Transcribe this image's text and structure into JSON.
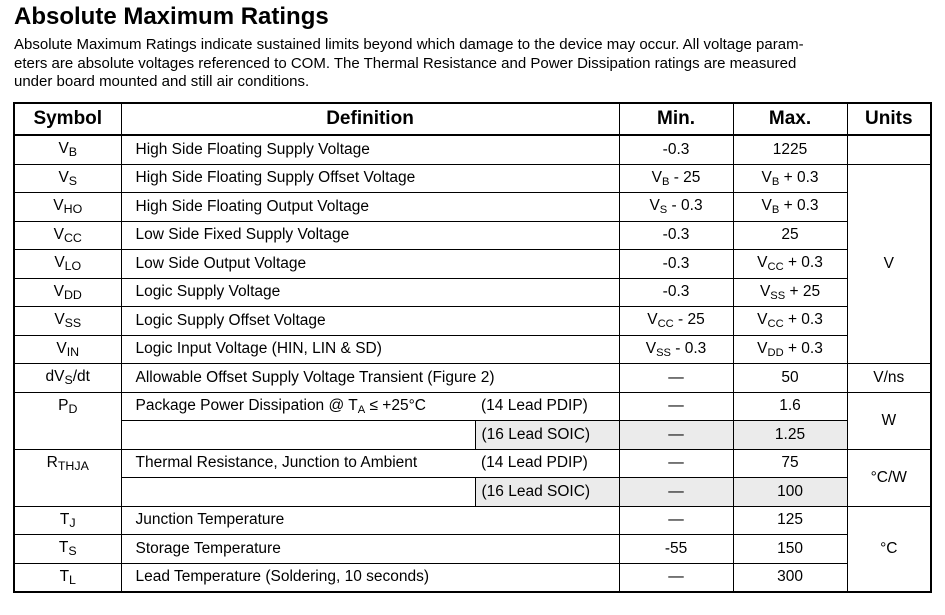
{
  "heading": "Absolute Maximum Ratings",
  "intro_lines": [
    "Absolute Maximum Ratings indicate sustained limits beyond which damage to the device may occur. All voltage param-",
    "eters are absolute voltages referenced to COM. The Thermal Resistance and Power Dissipation ratings are measured",
    "under board mounted and still air conditions."
  ],
  "columns": {
    "symbol": "Symbol",
    "definition": "Definition",
    "min": "Min.",
    "max": "Max.",
    "units": "Units"
  },
  "rows": {
    "vb": {
      "sym": "V",
      "sym_sub": "B",
      "definition": "High Side Floating Supply Voltage",
      "min": "-0.3",
      "max": "1225"
    },
    "vs": {
      "sym": "V",
      "sym_sub": "S",
      "definition": "High Side Floating Supply Offset Voltage",
      "min": "V",
      "min_sub": "B",
      "min_tail": " - 25",
      "max": "V",
      "max_sub": "B",
      "max_tail": " + 0.3"
    },
    "vho": {
      "sym": "V",
      "sym_sub": "HO",
      "definition": "High Side Floating Output Voltage",
      "min": "V",
      "min_sub": "S",
      "min_tail": " - 0.3",
      "max": "V",
      "max_sub": "B",
      "max_tail": " + 0.3"
    },
    "vcc": {
      "sym": "V",
      "sym_sub": "CC",
      "definition": "Low Side Fixed Supply Voltage",
      "min": "-0.3",
      "max": "25"
    },
    "vlo": {
      "sym": "V",
      "sym_sub": "LO",
      "definition": "Low Side Output Voltage",
      "min": "-0.3",
      "max": "V",
      "max_sub": "CC",
      "max_tail": " + 0.3"
    },
    "vdd": {
      "sym": "V",
      "sym_sub": "DD",
      "definition": "Logic Supply Voltage",
      "min": "-0.3",
      "max": "V",
      "max_sub": "SS",
      "max_tail": " + 25"
    },
    "vss": {
      "sym": "V",
      "sym_sub": "SS",
      "definition": "Logic Supply Offset Voltage",
      "min": "V",
      "min_sub": "CC",
      "min_tail": " - 25",
      "max": "V",
      "max_sub": "CC",
      "max_tail": " + 0.3"
    },
    "vin": {
      "sym": "V",
      "sym_sub": "IN",
      "definition": "Logic Input Voltage (HIN, LIN & SD)",
      "min": "V",
      "min_sub": "SS",
      "min_tail": " - 0.3",
      "max": "V",
      "max_sub": "DD",
      "max_tail": " + 0.3"
    },
    "dvsdt": {
      "sym": "dV",
      "sym_sub": "S",
      "sym_tail": "/dt",
      "definition": "Allowable Offset Supply Voltage Transient (Figure 2)",
      "min": "—",
      "max": "50",
      "units": "V/ns"
    },
    "pd": {
      "sym": "P",
      "sym_sub": "D",
      "definition": "Package Power Dissipation @ T",
      "def_sub": "A",
      "def_tail": " ≤ +25°C",
      "pkg1": "(14 Lead PDIP)",
      "min1": "—",
      "max1": "1.6",
      "pkg2": "(16 Lead SOIC)",
      "min2": "—",
      "max2": "1.25",
      "units": "W"
    },
    "rthja": {
      "sym": "R",
      "sym_sub": "THJA",
      "definition": "Thermal Resistance, Junction to Ambient",
      "pkg1": "(14 Lead PDIP)",
      "min1": "—",
      "max1": "75",
      "pkg2": "(16 Lead SOIC)",
      "min2": "—",
      "max2": "100",
      "units": "°C/W"
    },
    "tj": {
      "sym": "T",
      "sym_sub": "J",
      "definition": "Junction Temperature",
      "min": "—",
      "max": "125"
    },
    "ts": {
      "sym": "T",
      "sym_sub": "S",
      "definition": "Storage Temperature",
      "min": "-55",
      "max": "150"
    },
    "tl": {
      "sym": "T",
      "sym_sub": "L",
      "definition": "Lead Temperature (Soldering, 10 seconds)",
      "min": "—",
      "max": "300"
    }
  },
  "unit_groups": {
    "voltage": "V",
    "temperature": "°C"
  }
}
